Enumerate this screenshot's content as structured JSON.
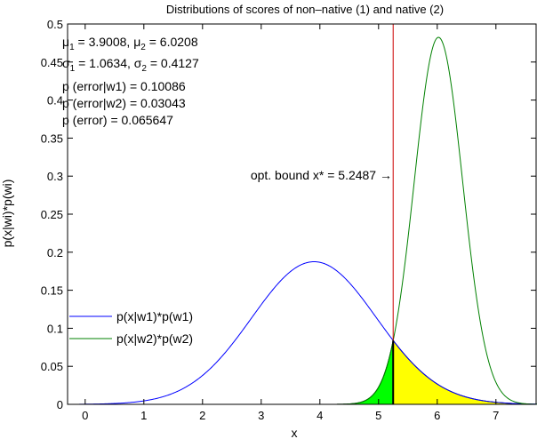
{
  "chart_data": {
    "type": "line",
    "title": "Distributions of scores of non–native (1) and native (2)",
    "xlabel": "x",
    "ylabel": "p(x|wi)*p(wi)",
    "xlim": [
      -0.3,
      7.7
    ],
    "ylim": [
      0,
      0.5
    ],
    "x_ticks": [
      0,
      1,
      2,
      3,
      4,
      5,
      6,
      7
    ],
    "y_ticks": [
      0,
      0.05,
      0.1,
      0.15,
      0.2,
      0.25,
      0.3,
      0.35,
      0.4,
      0.45,
      0.5
    ],
    "grid": false,
    "legend_position": "bottom-left",
    "series": [
      {
        "name": "p(x|w1)*p(w1)",
        "color": "#0000ff",
        "mu": 3.9008,
        "sigma": 1.0634,
        "peak": 0.1875
      },
      {
        "name": "p(x|w2)*p(w2)",
        "color": "#008000",
        "mu": 6.0208,
        "sigma": 0.4127,
        "peak": 0.4825
      }
    ],
    "decision_boundary": {
      "x": 5.2487,
      "color": "#cc0000",
      "label": "opt. bound x* = 5.2487 →"
    },
    "shaded_regions": [
      {
        "name": "error-w2",
        "color": "#00ff00",
        "description_from": 4.3,
        "to": 5.2487
      },
      {
        "name": "error-w1",
        "color": "#ffff00",
        "description_from": 5.2487,
        "to": 7.6
      }
    ],
    "stats": {
      "line1": {
        "a": "μ",
        "a_sub": "1",
        "a_val": " = 3.9008, ",
        "b": "μ",
        "b_sub": "2",
        "b_val": " = 6.0208"
      },
      "line2": {
        "a": "σ",
        "a_sub": "1",
        "a_val": " = 1.0634, ",
        "b": "σ",
        "b_sub": "2",
        "b_val": " = 0.4127"
      },
      "line3": "p (error|w1) = 0.10086",
      "line4": "p (error|w2) = 0.03043",
      "line5": "p (error) = 0.065647"
    }
  }
}
